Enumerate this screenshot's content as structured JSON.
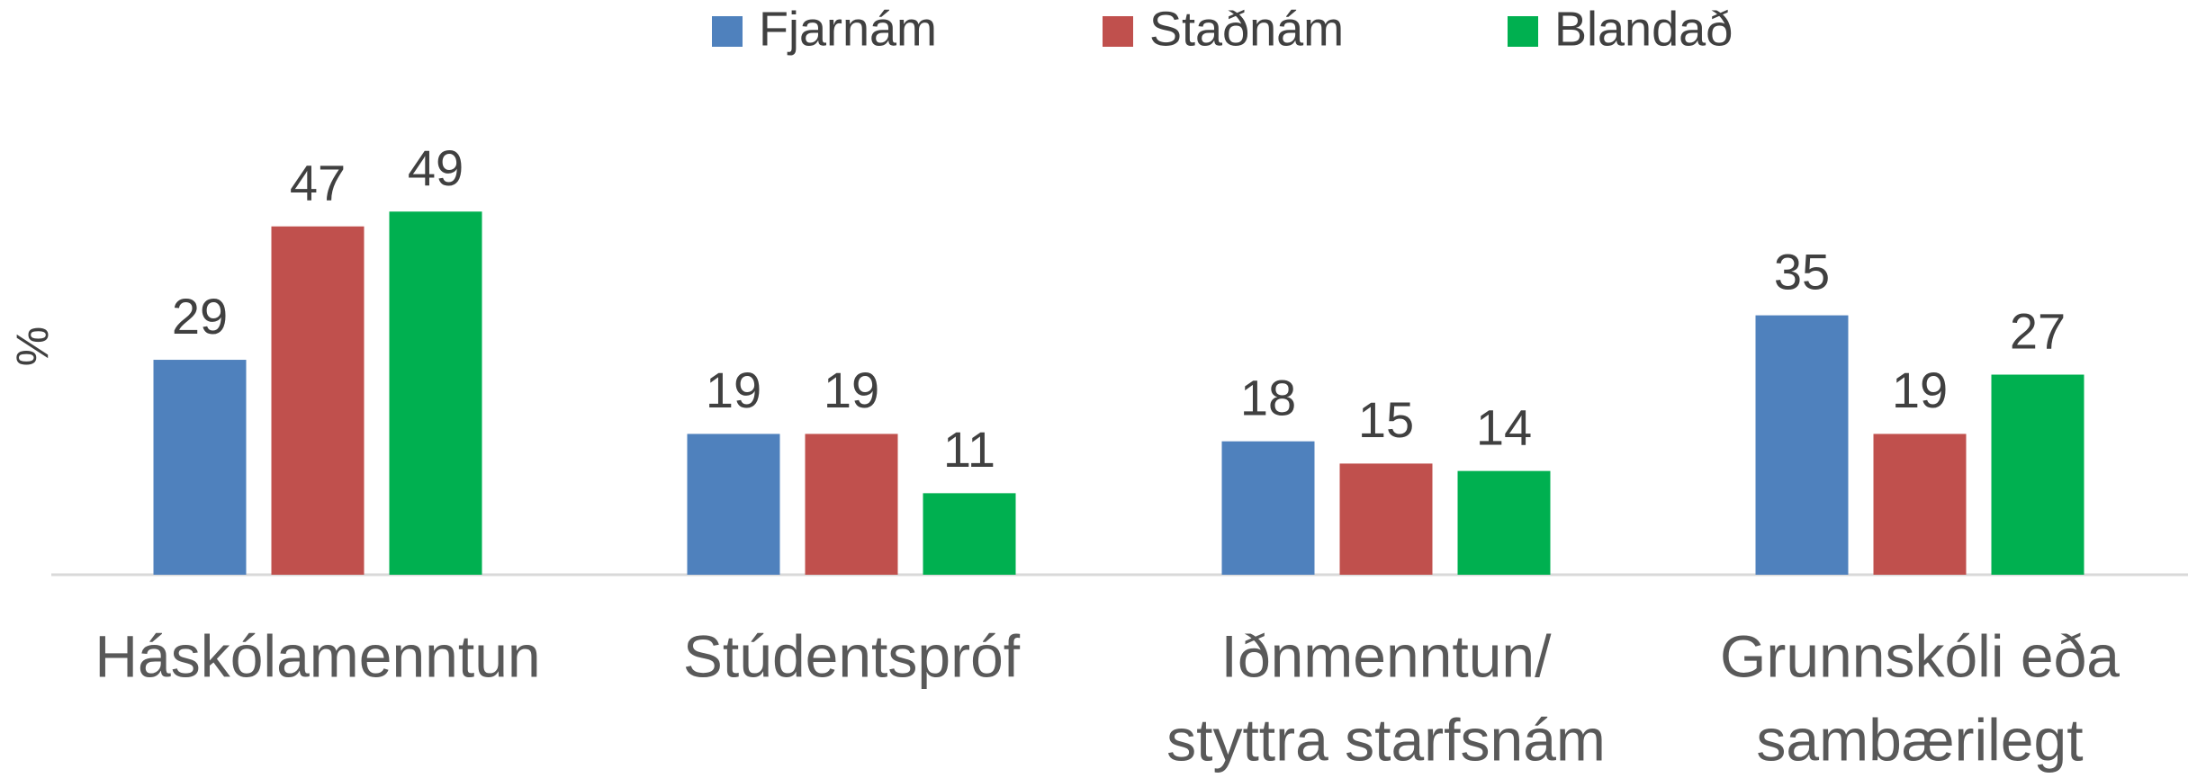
{
  "chart_data": {
    "type": "bar",
    "y_label": "%",
    "categories": [
      [
        "Háskólamenntun"
      ],
      [
        "Stúdentspróf"
      ],
      [
        "Iðnmenntun/",
        "styttra starfsnám"
      ],
      [
        "Grunnskóli eða",
        "sambærilegt"
      ]
    ],
    "series": [
      {
        "name": "Fjarnám",
        "color": "#4f81bd",
        "values": [
          29,
          19,
          18,
          35
        ]
      },
      {
        "name": "Staðnám",
        "color": "#c0504d",
        "values": [
          47,
          19,
          15,
          19
        ]
      },
      {
        "name": "Blandað",
        "color": "#00b050",
        "values": [
          49,
          11,
          14,
          27
        ]
      }
    ],
    "ylim": [
      0,
      50
    ]
  }
}
